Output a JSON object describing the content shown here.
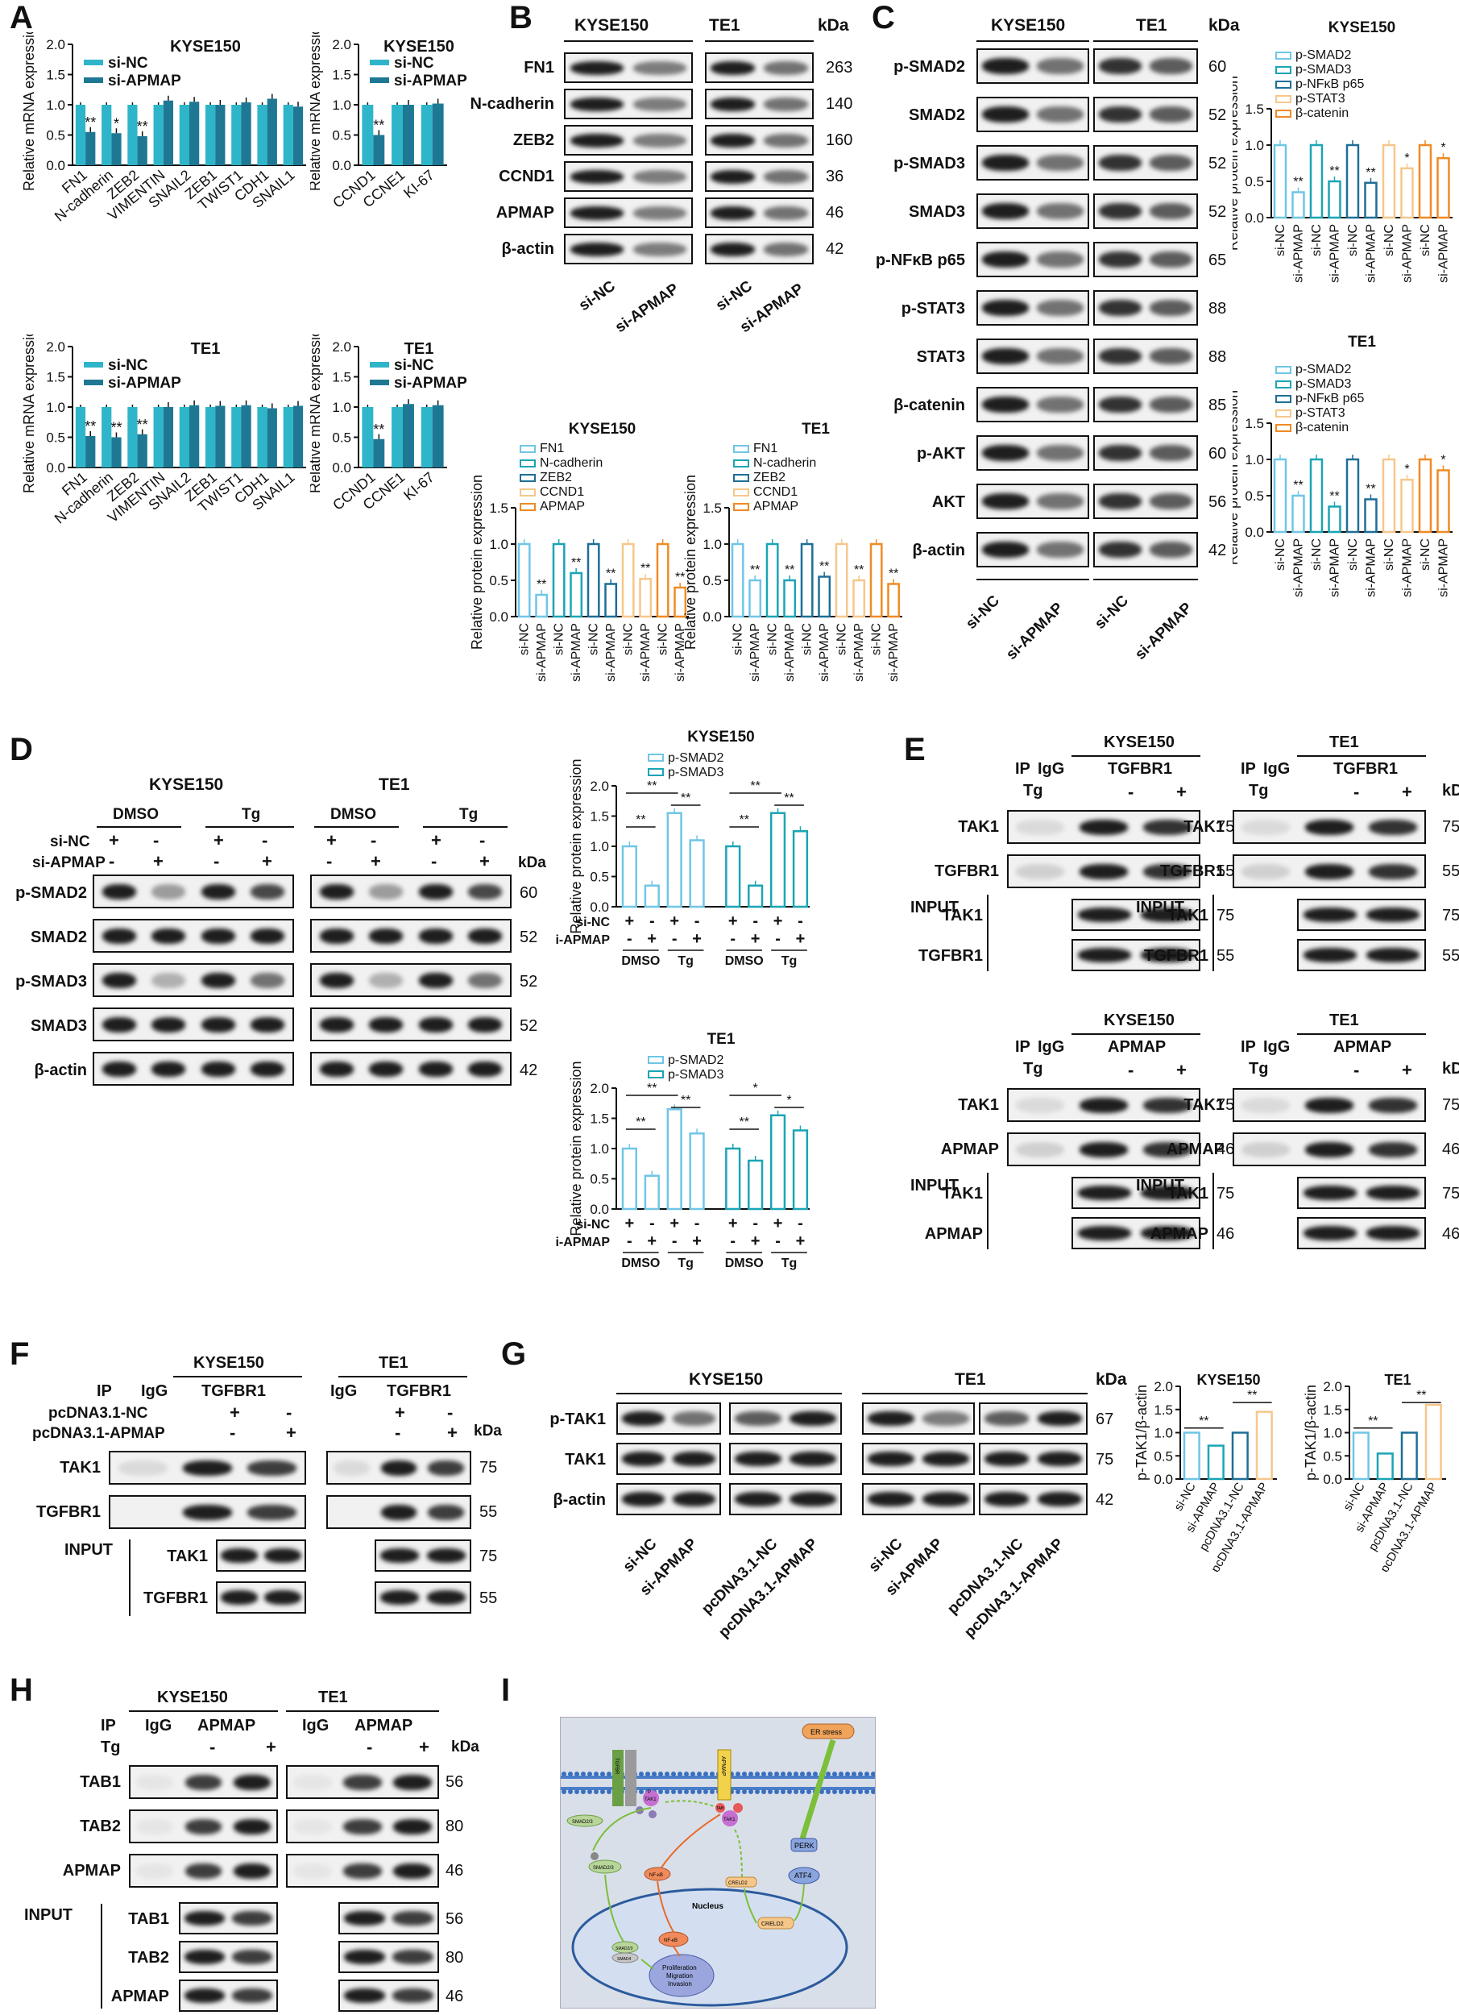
{
  "panels": {
    "A": "A",
    "B": "B",
    "C": "C",
    "D": "D",
    "E": "E",
    "F": "F",
    "G": "G",
    "H": "H",
    "I": "I"
  },
  "common": {
    "kda": "kDa",
    "si_nc": "si-NC",
    "si_apmap": "si-APMAP",
    "pc_nc": "pcDNA3.1-NC",
    "pc_apmap": "pcDNA3.1-APMAP",
    "kyse150": "KYSE150",
    "te1": "TE1",
    "mrna_ylabel": "Relative mRNA expression",
    "protein_ylabel": "Relative protein expression",
    "ip": "IP",
    "igg": "IgG",
    "input": "INPUT",
    "tg": "Tg",
    "dmso": "DMSO",
    "plus": "+",
    "minus": "-",
    "sig1": "*",
    "sig2": "**"
  },
  "chart_data": [
    {
      "type": "bar",
      "panel": "A",
      "title": "KYSE150",
      "ylabel": "Relative mRNA expression",
      "ylim": [
        0,
        2.0
      ],
      "yticks": [
        "0.0",
        "0.5",
        "1.0",
        "1.5",
        "2.0"
      ],
      "categories": [
        "FN1",
        "N-cadherin",
        "ZEB2",
        "VIMENTIN",
        "SNAIL2",
        "ZEB1",
        "TWIST1",
        "CDH1",
        "SNAIL1"
      ],
      "series": [
        {
          "name": "si-NC",
          "color": "#2fb5c9",
          "values": [
            1.0,
            1.0,
            1.0,
            1.0,
            1.0,
            1.0,
            1.0,
            1.0,
            1.0
          ]
        },
        {
          "name": "si-APMAP",
          "color": "#1e7893",
          "values": [
            0.55,
            0.53,
            0.48,
            1.07,
            1.05,
            1.0,
            1.04,
            1.1,
            0.97
          ]
        }
      ],
      "significance": [
        "**",
        "*",
        "**",
        "",
        "",
        "",
        "",
        "",
        ""
      ]
    },
    {
      "type": "bar",
      "panel": "A",
      "title": "KYSE150",
      "ylabel": "Relative mRNA expression",
      "ylim": [
        0,
        2.0
      ],
      "yticks": [
        "0.0",
        "0.5",
        "1.0",
        "1.5",
        "2.0"
      ],
      "categories": [
        "CCND1",
        "CCNE1",
        "KI-67"
      ],
      "series": [
        {
          "name": "si-NC",
          "color": "#2fb5c9",
          "values": [
            1.0,
            1.0,
            1.0
          ]
        },
        {
          "name": "si-APMAP",
          "color": "#1e7893",
          "values": [
            0.5,
            1.0,
            1.02
          ]
        }
      ],
      "significance": [
        "**",
        "",
        ""
      ]
    },
    {
      "type": "bar",
      "panel": "A",
      "title": "TE1",
      "ylabel": "Relative mRNA expression",
      "ylim": [
        0,
        2.0
      ],
      "yticks": [
        "0.0",
        "0.5",
        "1.0",
        "1.5",
        "2.0"
      ],
      "categories": [
        "FN1",
        "N-cadherin",
        "ZEB2",
        "VIMENTIN",
        "SNAIL2",
        "ZEB1",
        "TWIST1",
        "CDH1",
        "SNAIL1"
      ],
      "series": [
        {
          "name": "si-NC",
          "color": "#2fb5c9",
          "values": [
            1.0,
            1.0,
            1.0,
            1.0,
            1.0,
            1.0,
            1.0,
            1.0,
            1.0
          ]
        },
        {
          "name": "si-APMAP",
          "color": "#1e7893",
          "values": [
            0.52,
            0.5,
            0.55,
            1.0,
            1.03,
            1.02,
            1.03,
            0.98,
            1.02
          ]
        }
      ],
      "significance": [
        "**",
        "**",
        "**",
        "",
        "",
        "",
        "",
        "",
        ""
      ]
    },
    {
      "type": "bar",
      "panel": "A",
      "title": "TE1",
      "ylabel": "Relative mRNA expression",
      "ylim": [
        0,
        2.0
      ],
      "yticks": [
        "0.0",
        "0.5",
        "1.0",
        "1.5",
        "2.0"
      ],
      "categories": [
        "CCND1",
        "CCNE1",
        "KI-67"
      ],
      "series": [
        {
          "name": "si-NC",
          "color": "#2fb5c9",
          "values": [
            1.0,
            1.0,
            1.0
          ]
        },
        {
          "name": "si-APMAP",
          "color": "#1e7893",
          "values": [
            0.47,
            1.05,
            1.03
          ]
        }
      ],
      "significance": [
        "**",
        "",
        ""
      ]
    },
    {
      "type": "bar",
      "panel": "B",
      "title": "KYSE150",
      "ylabel": "Relative protein expression",
      "ylim": [
        0,
        1.5
      ],
      "yticks": [
        "0.0",
        "0.5",
        "1.0",
        "1.5"
      ],
      "legend": [
        "FN1",
        "N-cadherin",
        "ZEB2",
        "CCND1",
        "APMAP"
      ],
      "colors": [
        "#6fc6e6",
        "#1aa5b5",
        "#1e6e96",
        "#f6c78a",
        "#f08a24"
      ],
      "xlabels": [
        "si-NC",
        "si-APMAP",
        "si-NC",
        "si-APMAP",
        "si-NC",
        "si-APMAP",
        "si-NC",
        "si-APMAP",
        "si-NC",
        "si-APMAP"
      ],
      "values": [
        1.0,
        0.3,
        1.0,
        0.6,
        1.0,
        0.45,
        1.0,
        0.52,
        1.0,
        0.4
      ],
      "significance": [
        "",
        "**",
        "",
        "**",
        "",
        "**",
        "",
        "**",
        "",
        "**"
      ]
    },
    {
      "type": "bar",
      "panel": "B",
      "title": "TE1",
      "ylabel": "Relative protein expression",
      "ylim": [
        0,
        1.5
      ],
      "yticks": [
        "0.0",
        "0.5",
        "1.0",
        "1.5"
      ],
      "legend": [
        "FN1",
        "N-cadherin",
        "ZEB2",
        "CCND1",
        "APMAP"
      ],
      "colors": [
        "#6fc6e6",
        "#1aa5b5",
        "#1e6e96",
        "#f6c78a",
        "#f08a24"
      ],
      "xlabels": [
        "si-NC",
        "si-APMAP",
        "si-NC",
        "si-APMAP",
        "si-NC",
        "si-APMAP",
        "si-NC",
        "si-APMAP",
        "si-NC",
        "si-APMAP"
      ],
      "values": [
        1.0,
        0.5,
        1.0,
        0.5,
        1.0,
        0.55,
        1.0,
        0.5,
        1.0,
        0.45
      ],
      "significance": [
        "",
        "**",
        "",
        "**",
        "",
        "**",
        "",
        "**",
        "",
        "**"
      ]
    },
    {
      "type": "bar",
      "panel": "C",
      "title": "KYSE150",
      "ylabel": "Relative protein expression",
      "ylim": [
        0,
        1.5
      ],
      "yticks": [
        "0.0",
        "0.5",
        "1.0",
        "1.5"
      ],
      "legend": [
        "p-SMAD2",
        "p-SMAD3",
        "p-NFκB p65",
        "p-STAT3",
        "β-catenin"
      ],
      "colors": [
        "#6fc6e6",
        "#1aa5b5",
        "#1e6e96",
        "#f6c78a",
        "#f08a24"
      ],
      "xlabels": [
        "si-NC",
        "si-APMAP",
        "si-NC",
        "si-APMAP",
        "si-NC",
        "si-APMAP",
        "si-NC",
        "si-APMAP",
        "si-NC",
        "si-APMAP"
      ],
      "values": [
        1.0,
        0.35,
        1.0,
        0.5,
        1.0,
        0.48,
        1.0,
        0.68,
        1.0,
        0.82
      ],
      "significance": [
        "",
        "**",
        "",
        "**",
        "",
        "**",
        "",
        "*",
        "",
        "*"
      ]
    },
    {
      "type": "bar",
      "panel": "C",
      "title": "TE1",
      "ylabel": "Relative protein expression",
      "ylim": [
        0,
        1.5
      ],
      "yticks": [
        "0.0",
        "0.5",
        "1.0",
        "1.5"
      ],
      "legend": [
        "p-SMAD2",
        "p-SMAD3",
        "p-NFκB p65",
        "p-STAT3",
        "β-catenin"
      ],
      "colors": [
        "#6fc6e6",
        "#1aa5b5",
        "#1e6e96",
        "#f6c78a",
        "#f08a24"
      ],
      "xlabels": [
        "si-NC",
        "si-APMAP",
        "si-NC",
        "si-APMAP",
        "si-NC",
        "si-APMAP",
        "si-NC",
        "si-APMAP",
        "si-NC",
        "si-APMAP"
      ],
      "values": [
        1.0,
        0.5,
        1.0,
        0.35,
        1.0,
        0.45,
        1.0,
        0.72,
        1.0,
        0.85
      ],
      "significance": [
        "",
        "**",
        "",
        "**",
        "",
        "**",
        "",
        "*",
        "",
        "*"
      ]
    },
    {
      "type": "bar",
      "panel": "D",
      "title": "KYSE150",
      "ylabel": "Relative protein expression",
      "ylim": [
        0,
        2.0
      ],
      "yticks": [
        "0.0",
        "0.5",
        "1.0",
        "1.5",
        "2.0"
      ],
      "legend": [
        "p-SMAD2",
        "p-SMAD3"
      ],
      "colors": [
        "#6fc6e6",
        "#1aa5b5"
      ],
      "groups": [
        {
          "name": "p-SMAD2",
          "values": [
            1.0,
            0.35,
            1.55,
            1.1
          ]
        },
        {
          "name": "p-SMAD3",
          "values": [
            1.0,
            0.35,
            1.55,
            1.25
          ]
        }
      ],
      "rows": [
        {
          "label": "si-NC",
          "marks": [
            "+",
            "-",
            "+",
            "-",
            "+",
            "-",
            "+",
            "-"
          ]
        },
        {
          "label": "si-APMAP",
          "marks": [
            "-",
            "+",
            "-",
            "+",
            "-",
            "+",
            "-",
            "+"
          ]
        }
      ],
      "conditions": [
        "DMSO",
        "Tg",
        "DMSO",
        "Tg"
      ],
      "brackets": [
        "**",
        "**",
        "**",
        "**",
        "**",
        "**"
      ]
    },
    {
      "type": "bar",
      "panel": "D",
      "title": "TE1",
      "ylabel": "Relative protein expression",
      "ylim": [
        0,
        2.0
      ],
      "yticks": [
        "0.0",
        "0.5",
        "1.0",
        "1.5",
        "2.0"
      ],
      "legend": [
        "p-SMAD2",
        "p-SMAD3"
      ],
      "colors": [
        "#6fc6e6",
        "#1aa5b5"
      ],
      "groups": [
        {
          "name": "p-SMAD2",
          "values": [
            1.0,
            0.55,
            1.65,
            1.25
          ]
        },
        {
          "name": "p-SMAD3",
          "values": [
            1.0,
            0.8,
            1.55,
            1.3
          ]
        }
      ],
      "rows": [
        {
          "label": "si-NC",
          "marks": [
            "+",
            "-",
            "+",
            "-",
            "+",
            "-",
            "+",
            "-"
          ]
        },
        {
          "label": "si-APMAP",
          "marks": [
            "-",
            "+",
            "-",
            "+",
            "-",
            "+",
            "-",
            "+"
          ]
        }
      ],
      "conditions": [
        "DMSO",
        "Tg",
        "DMSO",
        "Tg"
      ],
      "brackets": [
        "**",
        "**",
        "**",
        "**",
        "*",
        "*"
      ]
    },
    {
      "type": "bar",
      "panel": "G",
      "title": "KYSE150",
      "ylabel": "p-TAK1/β-actin",
      "ylim": [
        0,
        2.0
      ],
      "yticks": [
        "0.0",
        "0.5",
        "1.0",
        "1.5",
        "2.0"
      ],
      "categories": [
        "si-NC",
        "si-APMAP",
        "pcDNA3.1-NC",
        "pcDNA3.1-APMAP"
      ],
      "colors": [
        "#6fc6e6",
        "#1aa5b5",
        "#1e6e96",
        "#f6c78a"
      ],
      "values": [
        1.0,
        0.72,
        1.0,
        1.45
      ],
      "brackets": [
        "**",
        "**"
      ]
    },
    {
      "type": "bar",
      "panel": "G",
      "title": "TE1",
      "ylabel": "p-TAK1/β-actin",
      "ylim": [
        0,
        2.0
      ],
      "yticks": [
        "0.0",
        "0.5",
        "1.0",
        "1.5",
        "2.0"
      ],
      "categories": [
        "si-NC",
        "si-APMAP",
        "pcDNA3.1-NC",
        "pcDNA3.1-APMAP"
      ],
      "colors": [
        "#6fc6e6",
        "#1aa5b5",
        "#1e6e96",
        "#f6c78a"
      ],
      "values": [
        1.0,
        0.55,
        1.0,
        1.6
      ],
      "brackets": [
        "**",
        "**"
      ]
    }
  ],
  "blots": {
    "B_rows": [
      {
        "name": "FN1",
        "kda": "263"
      },
      {
        "name": "N-cadherin",
        "kda": "140"
      },
      {
        "name": "ZEB2",
        "kda": "160"
      },
      {
        "name": "CCND1",
        "kda": "36"
      },
      {
        "name": "APMAP",
        "kda": "46"
      },
      {
        "name": "β-actin",
        "kda": "42"
      }
    ],
    "C_rows": [
      {
        "name": "p-SMAD2",
        "kda": "60"
      },
      {
        "name": "SMAD2",
        "kda": "52"
      },
      {
        "name": "p-SMAD3",
        "kda": "52"
      },
      {
        "name": "SMAD3",
        "kda": "52"
      },
      {
        "name": "p-NFκB p65",
        "kda": "65"
      },
      {
        "name": "p-STAT3",
        "kda": "88"
      },
      {
        "name": "STAT3",
        "kda": "88"
      },
      {
        "name": "β-catenin",
        "kda": "85"
      },
      {
        "name": "p-AKT",
        "kda": "60"
      },
      {
        "name": "AKT",
        "kda": "56"
      },
      {
        "name": "β-actin",
        "kda": "42"
      }
    ],
    "D_rows": [
      {
        "name": "p-SMAD2",
        "kda": "60"
      },
      {
        "name": "SMAD2",
        "kda": "52"
      },
      {
        "name": "p-SMAD3",
        "kda": "52"
      },
      {
        "name": "SMAD3",
        "kda": "52"
      },
      {
        "name": "β-actin",
        "kda": "42"
      }
    ],
    "E_top_rows": [
      {
        "name": "TAK1",
        "kda": "75"
      },
      {
        "name": "TGFBR1",
        "kda": "55"
      },
      {
        "name": "TAK1",
        "kda": "75"
      },
      {
        "name": "TGFBR1",
        "kda": "55"
      }
    ],
    "E_bottom_rows": [
      {
        "name": "TAK1",
        "kda": "75"
      },
      {
        "name": "APMAP",
        "kda": "46"
      },
      {
        "name": "TAK1",
        "kda": "75"
      },
      {
        "name": "APMAP",
        "kda": "46"
      }
    ],
    "ip_tgfbr1": "TGFBR1",
    "ip_apmap": "APMAP",
    "F_rows": [
      {
        "name": "TAK1",
        "kda": "75"
      },
      {
        "name": "TGFBR1",
        "kda": "55"
      },
      {
        "name": "TAK1",
        "kda": "75"
      },
      {
        "name": "TGFBR1",
        "kda": "55"
      }
    ],
    "G_rows": [
      {
        "name": "p-TAK1",
        "kda": "67"
      },
      {
        "name": "TAK1",
        "kda": "75"
      },
      {
        "name": "β-actin",
        "kda": "42"
      }
    ],
    "H_rows": [
      {
        "name": "TAB1",
        "kda": "56"
      },
      {
        "name": "TAB2",
        "kda": "80"
      },
      {
        "name": "APMAP",
        "kda": "46"
      },
      {
        "name": "TAB1",
        "kda": "56"
      },
      {
        "name": "TAB2",
        "kda": "80"
      },
      {
        "name": "APMAP",
        "kda": "46"
      }
    ]
  },
  "diagram": {
    "er_stress": "ER stress",
    "perk": "PERK",
    "atf4": "ATF4",
    "creld2": "CRELD2",
    "nucleus": "Nucleus",
    "outcome": [
      "Proliferation",
      "Migration",
      "Invasion"
    ],
    "nfkb": "NF-κB",
    "smad23": "SMAD2/3",
    "smad4": "SMAD4",
    "tak1": "TAK1",
    "tab": "TAB",
    "tgfbr": "TGFBR",
    "apmap": "APMAP",
    "p": "P"
  }
}
